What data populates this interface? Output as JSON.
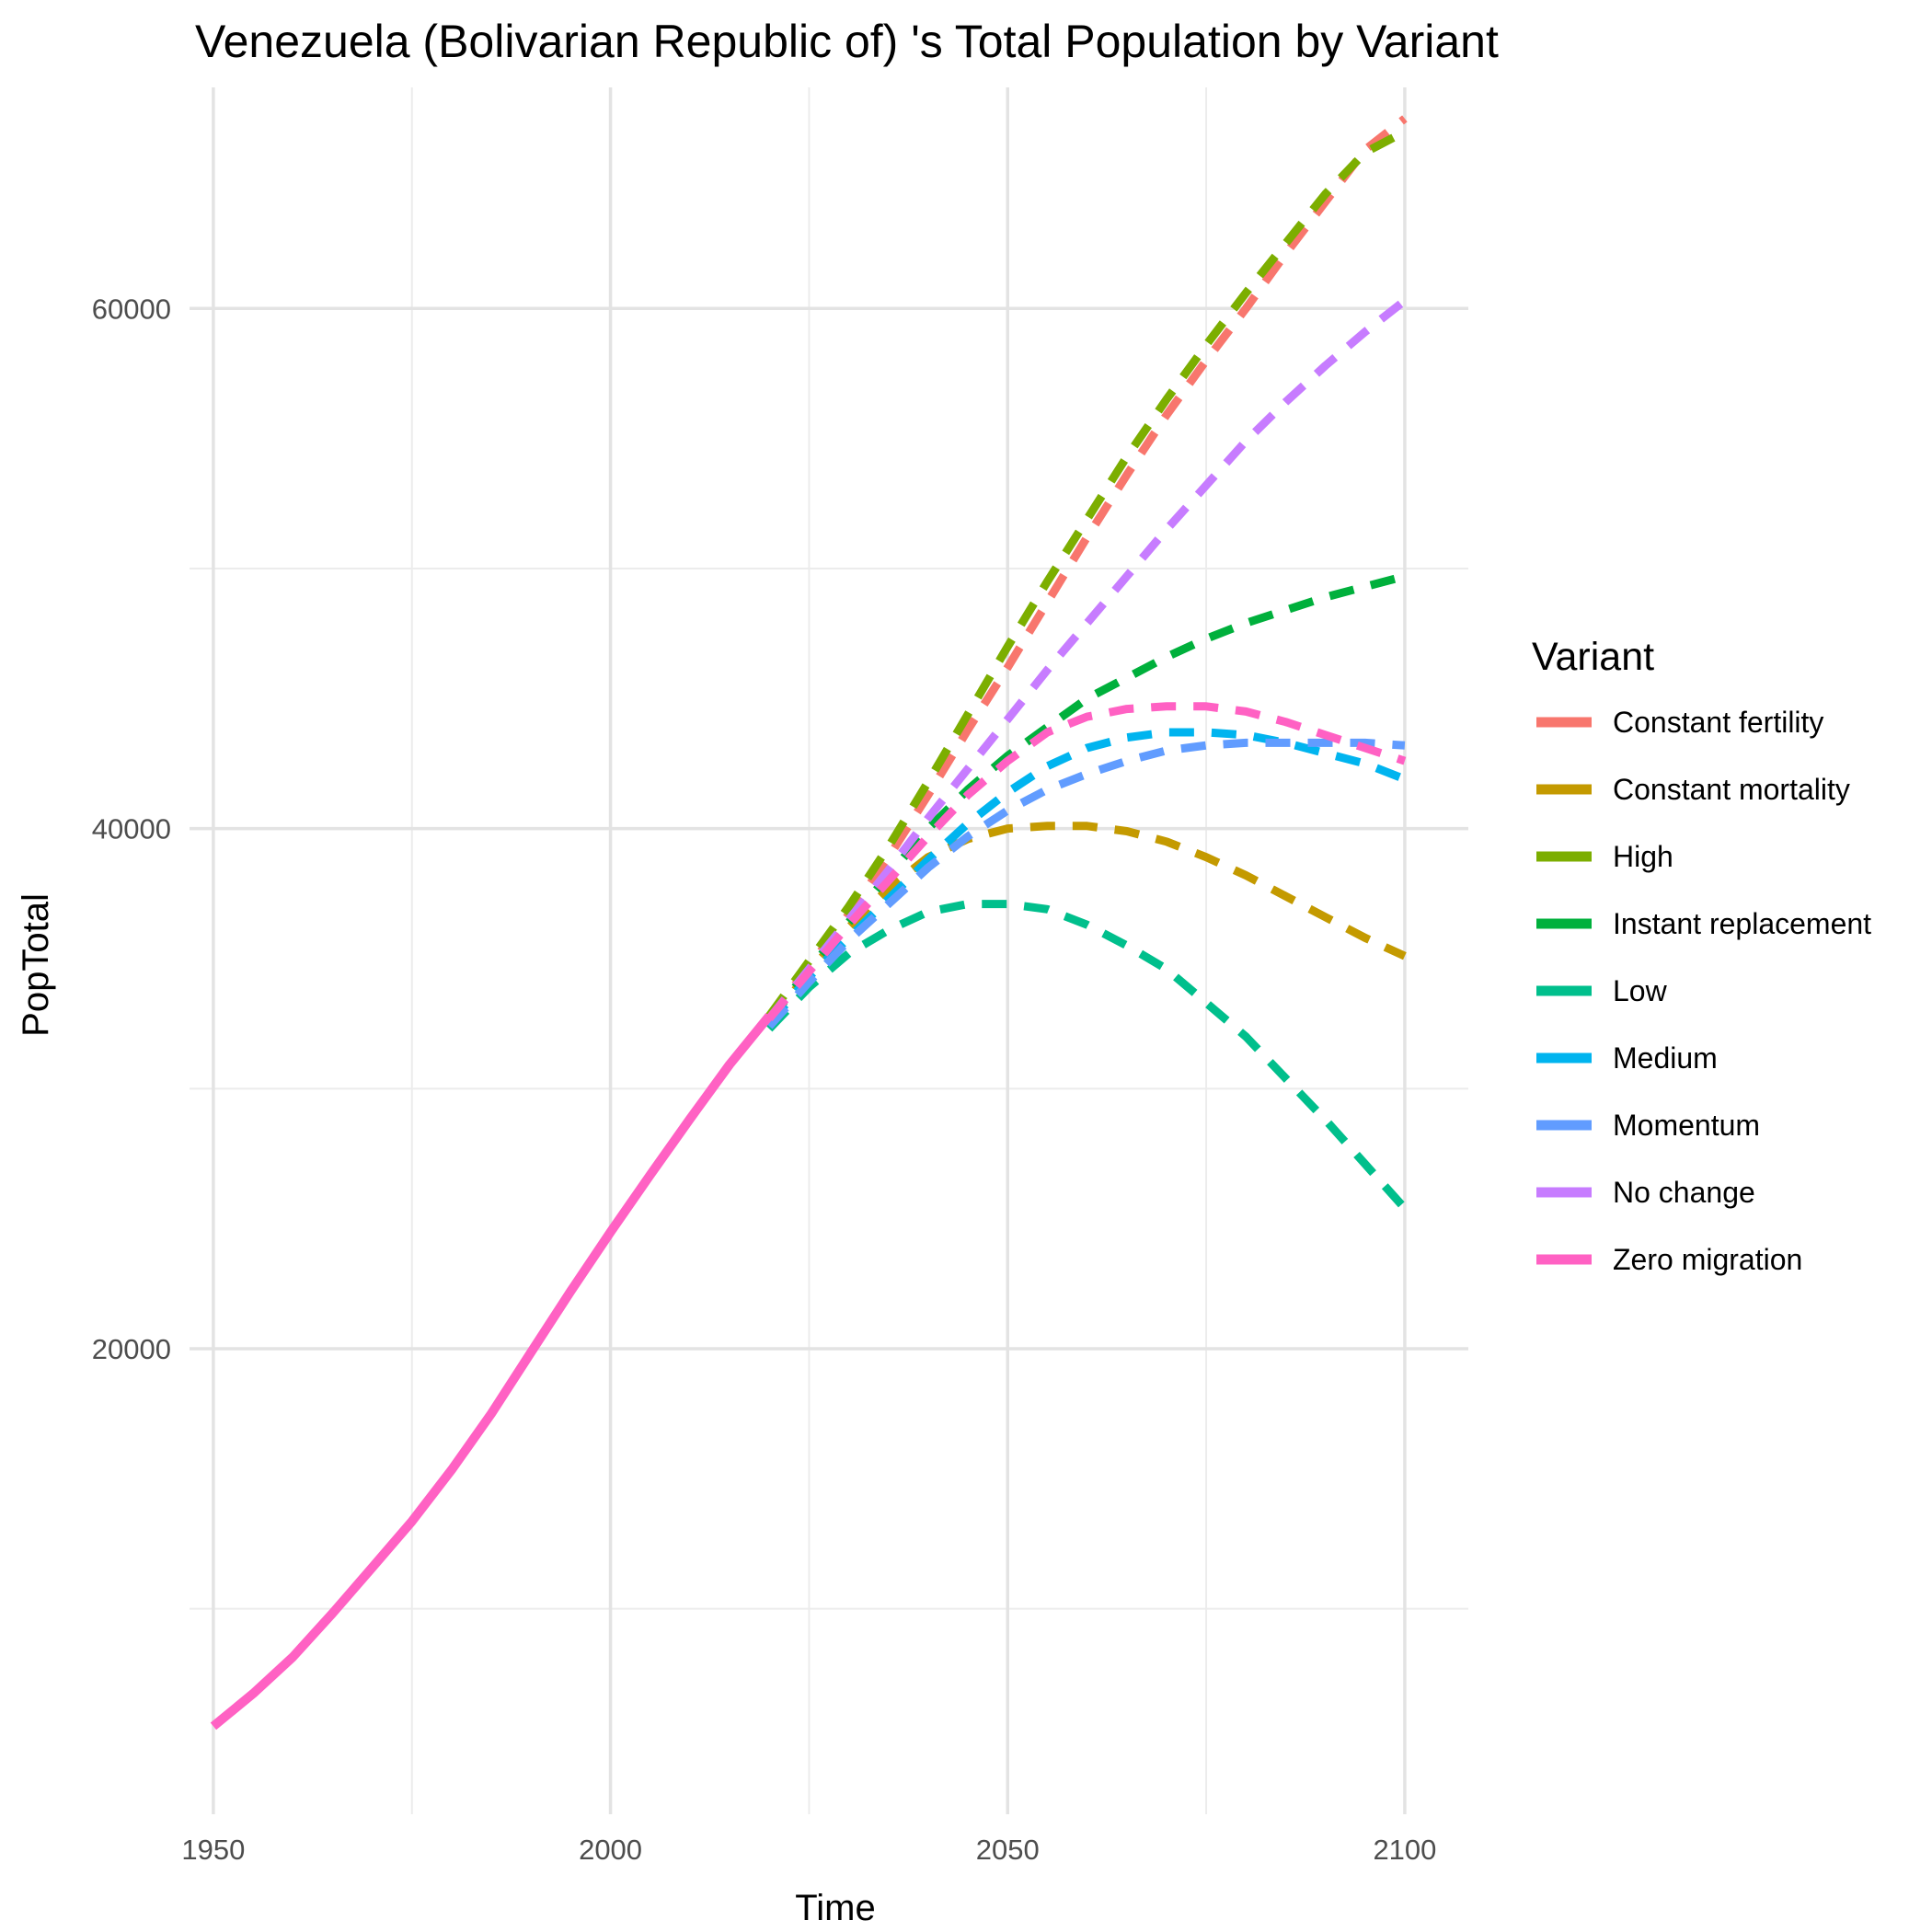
{
  "chart_data": {
    "type": "line",
    "title": "Venezuela (Bolivarian Republic of) 's Total Population by Variant",
    "xlabel": "Time",
    "ylabel": "PopTotal",
    "xlim": [
      1947,
      2108
    ],
    "ylim": [
      2100,
      68500
    ],
    "x_ticks": [
      1950,
      2000,
      2050,
      2100
    ],
    "y_ticks": [
      20000,
      40000,
      60000
    ],
    "grid": true,
    "legend": {
      "title": "Variant",
      "position": "right"
    },
    "historical": {
      "name": "Zero migration",
      "x": [
        1950,
        1955,
        1960,
        1965,
        1970,
        1975,
        1980,
        1985,
        1990,
        1995,
        2000,
        2005,
        2010,
        2015,
        2020
      ],
      "y": [
        5482,
        6737,
        8141,
        9825,
        11588,
        13361,
        15343,
        17507,
        19862,
        22213,
        24484,
        26678,
        28835,
        30930,
        32800
      ]
    },
    "x_projection": [
      2020,
      2025,
      2030,
      2035,
      2040,
      2045,
      2050,
      2055,
      2060,
      2065,
      2070,
      2075,
      2080,
      2085,
      2090,
      2095,
      2100
    ],
    "series": [
      {
        "name": "Constant fertility",
        "color": "#F8766D",
        "values": [
          32700,
          34700,
          36700,
          38900,
          41300,
          43800,
          46200,
          48700,
          51200,
          53600,
          55900,
          58000,
          60000,
          62100,
          64100,
          66100,
          67300
        ]
      },
      {
        "name": "Constant mortality",
        "color": "#C49A00",
        "values": [
          32500,
          34500,
          36200,
          37700,
          38900,
          39600,
          40000,
          40100,
          40100,
          39900,
          39500,
          38900,
          38200,
          37400,
          36600,
          35800,
          35100
        ]
      },
      {
        "name": "High",
        "color": "#7CAE00",
        "values": [
          32800,
          34900,
          37000,
          39300,
          41800,
          44400,
          47000,
          49500,
          51900,
          54300,
          56500,
          58600,
          60600,
          62500,
          64400,
          66000,
          66800
        ]
      },
      {
        "name": "Instant replacement",
        "color": "#00B03C",
        "values": [
          32600,
          34600,
          36400,
          38200,
          40000,
          41500,
          42800,
          43900,
          45000,
          45800,
          46600,
          47300,
          47900,
          48400,
          48900,
          49300,
          49700
        ]
      },
      {
        "name": "Low",
        "color": "#00BF8C",
        "values": [
          32300,
          33900,
          35200,
          36100,
          36800,
          37100,
          37100,
          36900,
          36300,
          35500,
          34600,
          33300,
          32000,
          30400,
          28800,
          27100,
          25400
        ]
      },
      {
        "name": "Medium",
        "color": "#00B4EF",
        "values": [
          32500,
          34300,
          35800,
          37300,
          38800,
          40200,
          41400,
          42400,
          43100,
          43500,
          43700,
          43700,
          43600,
          43300,
          42900,
          42500,
          41900
        ]
      },
      {
        "name": "Momentum",
        "color": "#619CFF",
        "values": [
          32400,
          34100,
          35700,
          37100,
          38500,
          39700,
          40700,
          41500,
          42100,
          42600,
          43000,
          43200,
          43300,
          43300,
          43300,
          43300,
          43200
        ]
      },
      {
        "name": "No change",
        "color": "#C77CFF",
        "values": [
          32700,
          34600,
          36500,
          38400,
          40400,
          42300,
          44200,
          46100,
          47900,
          49700,
          51500,
          53200,
          54900,
          56400,
          57800,
          59100,
          60300
        ]
      },
      {
        "name": "Zero migration",
        "color": "#FF61C3",
        "values": [
          32700,
          34500,
          36300,
          38000,
          39700,
          41300,
          42600,
          43700,
          44300,
          44600,
          44700,
          44700,
          44500,
          44100,
          43600,
          43100,
          42600
        ]
      }
    ]
  }
}
